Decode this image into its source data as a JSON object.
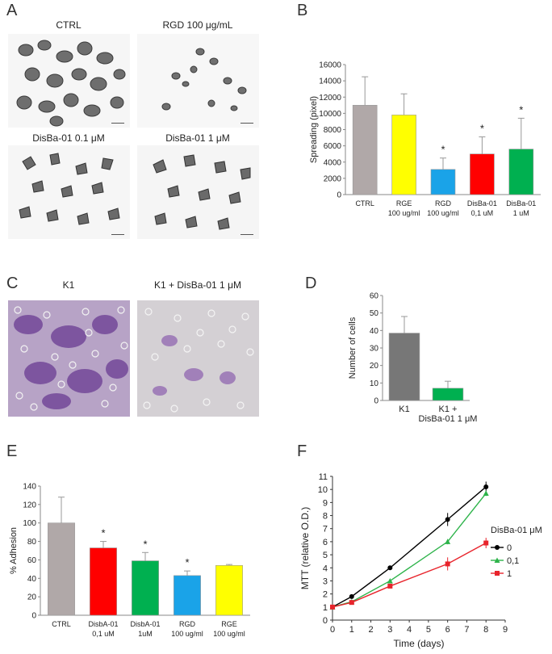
{
  "panels": {
    "a": {
      "letter": "A",
      "images": [
        {
          "label": "CTRL"
        },
        {
          "label": "RGD 100 μg/mL"
        },
        {
          "label": "DisBa-01   0.1 μM"
        },
        {
          "label": "DisBa-01  1 μM"
        }
      ]
    },
    "b": {
      "letter": "B"
    },
    "c": {
      "letter": "C",
      "images": [
        {
          "label": "K1"
        },
        {
          "label": "K1 + DisBa-01  1 μM"
        }
      ]
    },
    "d": {
      "letter": "D"
    },
    "e": {
      "letter": "E"
    },
    "f": {
      "letter": "F"
    }
  },
  "chart_data": [
    {
      "id": "B",
      "type": "bar",
      "ylabel": "Spreading (pixel)",
      "ylim": [
        0,
        16000
      ],
      "yticks": [
        "0",
        "2000",
        "4000",
        "6000",
        "8000",
        "10000",
        "12000",
        "14000",
        "16000"
      ],
      "categories": [
        [
          "CTRL"
        ],
        [
          "RGE",
          "100 ug/ml"
        ],
        [
          "RGD",
          "100 ug/ml"
        ],
        [
          "DisBa-01",
          "0,1 uM"
        ],
        [
          "DisBa-01",
          "1 uM"
        ]
      ],
      "values": [
        11000,
        9800,
        3100,
        5000,
        5600
      ],
      "errors": [
        3500,
        2600,
        1400,
        2100,
        3800
      ],
      "colors": [
        "#b0a8a8",
        "#ffff00",
        "#1aa3e8",
        "#ff0000",
        "#00b050"
      ],
      "annotations": [
        "",
        "",
        "*",
        "*",
        "*"
      ]
    },
    {
      "id": "D",
      "type": "bar",
      "ylabel": "Number of cells",
      "ylim": [
        0,
        60
      ],
      "yticks": [
        "0",
        "10",
        "20",
        "30",
        "40",
        "50",
        "60"
      ],
      "categories": [
        [
          "K1"
        ],
        [
          "K1 +",
          "DisBa-01 1 μM"
        ]
      ],
      "values": [
        38.5,
        7
      ],
      "errors": [
        9.5,
        4
      ],
      "colors": [
        "#777777",
        "#00b050"
      ],
      "annotations": [
        "",
        ""
      ]
    },
    {
      "id": "E",
      "type": "bar",
      "ylabel": "% Adhesion",
      "ylim": [
        0,
        140
      ],
      "yticks": [
        "0",
        "20",
        "40",
        "60",
        "80",
        "100",
        "120",
        "140"
      ],
      "categories": [
        [
          "CTRL"
        ],
        [
          "DisbA-01",
          "0,1 uM"
        ],
        [
          "DisbA-01",
          "1uM"
        ],
        [
          "RGD",
          "100 ug/ml"
        ],
        [
          "RGE",
          "100 ug/ml"
        ]
      ],
      "values": [
        100,
        73,
        59,
        43,
        54
      ],
      "errors": [
        28,
        7,
        9,
        5,
        1
      ],
      "colors": [
        "#b0a8a8",
        "#ff0000",
        "#00b050",
        "#1aa3e8",
        "#ffff00"
      ],
      "annotations": [
        "",
        "*",
        "*",
        "*",
        ""
      ]
    },
    {
      "id": "F",
      "type": "line",
      "xlabel": "Time (days)",
      "ylabel": "MTT  (relative O.D.)",
      "xlim": [
        0,
        9
      ],
      "ylim": [
        0,
        11
      ],
      "xticks": [
        "0",
        "1",
        "2",
        "3",
        "4",
        "5",
        "6",
        "7",
        "8",
        "9"
      ],
      "yticks": [
        "0",
        "1",
        "2",
        "3",
        "4",
        "5",
        "6",
        "7",
        "8",
        "9",
        "10",
        "11"
      ],
      "legend_title": "DisBa-01 μM",
      "x": [
        0,
        1,
        3,
        6,
        8
      ],
      "series": [
        {
          "name": "0",
          "color": "#000000",
          "marker": "circle",
          "values": [
            1.0,
            1.8,
            4.0,
            7.7,
            10.2
          ],
          "errors": [
            0.1,
            0.1,
            0.1,
            0.5,
            0.4
          ]
        },
        {
          "name": "0,1",
          "color": "#2db34a",
          "marker": "triangle",
          "values": [
            1.0,
            1.4,
            3.0,
            6.0,
            9.7
          ],
          "errors": [
            0.1,
            0.1,
            0.1,
            0.2,
            0.2
          ]
        },
        {
          "name": "1",
          "color": "#e8242c",
          "marker": "square",
          "values": [
            1.0,
            1.35,
            2.6,
            4.3,
            5.9
          ],
          "errors": [
            0.1,
            0.1,
            0.1,
            0.5,
            0.4
          ]
        }
      ]
    }
  ]
}
